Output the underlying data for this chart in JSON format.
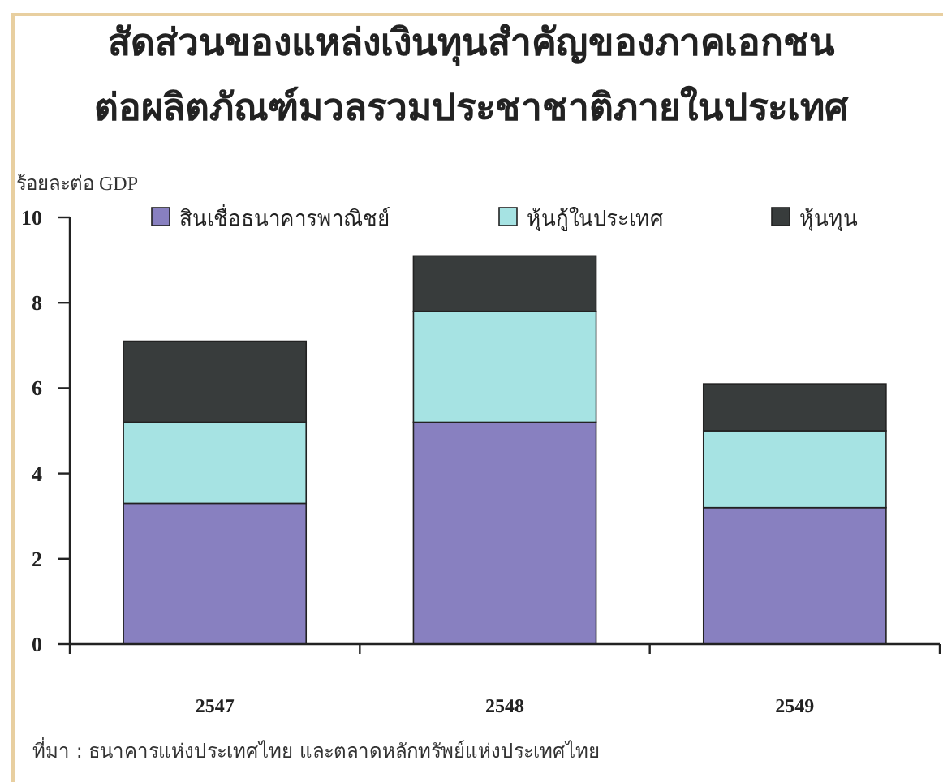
{
  "chart_data": {
    "type": "bar",
    "title": "สัดส่วนของแหล่งเงินทุนสำคัญของภาคเอกชน\nต่อผลิตภัณฑ์มวลรวมประชาชาติภายในประเทศ",
    "ylabel": "ร้อยละต่อ GDP",
    "categories": [
      "2547",
      "2548",
      "2549"
    ],
    "series": [
      {
        "name": "สินเชื่อธนาคารพาณิชย์",
        "color": "#8880c0",
        "values": [
          3.3,
          5.2,
          3.2
        ]
      },
      {
        "name": "หุ้นกู้ในประเทศ",
        "color": "#a6e3e3",
        "values": [
          1.9,
          2.6,
          1.8
        ]
      },
      {
        "name": "หุ้นทุน",
        "color": "#383c3c",
        "values": [
          1.9,
          1.3,
          1.1
        ]
      }
    ],
    "stacked": true,
    "ylim": [
      0,
      10
    ],
    "yticks": [
      0,
      2,
      4,
      6,
      8,
      10
    ],
    "legend": "top",
    "annotations": [
      "ที่มา : ธนาคารแห่งประเทศไทย และตลาดหลักทรัพย์แห่งประเทศไทย"
    ]
  }
}
